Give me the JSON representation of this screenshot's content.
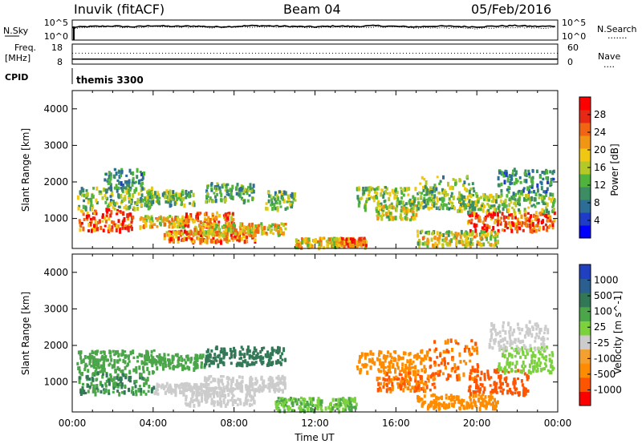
{
  "header": {
    "station": "Inuvik (fitACF)",
    "beam": "Beam 04",
    "date": "05/Feb/2016"
  },
  "panel_labels": {
    "nsky": "N.Sky",
    "nsearch": "N.Search",
    "freq_line1": "Freq.",
    "freq_line2": "[MHz]",
    "nave": "Nave",
    "cpid": "CPID",
    "cpid_value": "themis 3300"
  },
  "dotted_marker": ".......",
  "nave_marker": "....",
  "chart_data": [
    {
      "type": "line",
      "name": "noise-panel",
      "left_ticks": [
        "10^5",
        "10^0"
      ],
      "right_ticks": [
        "10^5",
        "10^0"
      ],
      "left_label": "N.Sky",
      "right_label": "N.Search",
      "x": [
        0,
        1,
        2,
        3,
        4,
        5,
        6,
        7,
        8,
        9,
        10,
        11,
        12,
        13,
        14,
        15,
        16,
        17,
        18,
        19,
        20,
        21,
        22,
        23,
        24
      ],
      "series": [
        {
          "name": "N.Sky",
          "values": [
            3.2,
            3.4,
            3.5,
            3.3,
            3.6,
            3.4,
            3.5,
            3.3,
            3.4,
            3.6,
            3.5,
            3.4,
            3.3,
            3.5,
            3.4,
            3.6,
            3.4,
            3.3,
            3.5,
            3.4,
            3.3,
            3.5,
            3.6,
            3.4,
            3.5
          ]
        },
        {
          "name": "N.Search",
          "values": [
            3.0,
            3.2,
            3.3,
            3.1,
            3.3,
            3.2,
            3.2,
            3.1,
            3.2,
            3.3,
            3.3,
            3.2,
            3.1,
            3.2,
            3.1,
            3.3,
            3.2,
            3.0,
            3.1,
            3.0,
            2.9,
            3.1,
            3.2,
            3.0,
            3.1
          ]
        }
      ],
      "ylim": [
        0,
        5
      ]
    },
    {
      "type": "line",
      "name": "freq-panel",
      "left_ticks": [
        "18",
        "8"
      ],
      "right_ticks": [
        "60",
        "0"
      ],
      "x": [
        0,
        24
      ],
      "series": [
        {
          "name": "Freq.",
          "values": [
            10.5,
            10.5
          ]
        },
        {
          "name": "Nave",
          "values": [
            35,
            35
          ]
        }
      ],
      "ylim_left": [
        8,
        18
      ],
      "ylim_right": [
        0,
        60
      ]
    },
    {
      "type": "heatmap",
      "name": "power",
      "ylabel": "Slant Range [km]",
      "xlim": [
        0,
        24
      ],
      "ylim": [
        180,
        4500
      ],
      "yticks": [
        "1000",
        "2000",
        "3000",
        "4000"
      ],
      "colorbar_label": "Power [dB]",
      "colorbar_ticks": [
        "28",
        "24",
        "20",
        "16",
        "12",
        "8",
        "4"
      ],
      "colorbar_colors": [
        "#0000ff",
        "#1e3cc8",
        "#2d6e96",
        "#3c8c64",
        "#50b43c",
        "#b4c828",
        "#f0c814",
        "#f09614",
        "#f06414",
        "#e62814",
        "#ff0000"
      ],
      "blobs": [
        {
          "t0": 0.3,
          "t1": 3.0,
          "r0": 700,
          "r1": 1300,
          "value": 27
        },
        {
          "t0": 0.2,
          "t1": 4.0,
          "r0": 1300,
          "r1": 1900,
          "value": 14
        },
        {
          "t0": 1.5,
          "t1": 3.5,
          "r0": 1800,
          "r1": 2400,
          "value": 10
        },
        {
          "t0": 3.5,
          "t1": 6.0,
          "r0": 1400,
          "r1": 1800,
          "value": 14
        },
        {
          "t0": 3.3,
          "t1": 5.5,
          "r0": 800,
          "r1": 1100,
          "value": 18
        },
        {
          "t0": 5.5,
          "t1": 8.0,
          "r0": 800,
          "r1": 1200,
          "value": 25
        },
        {
          "t0": 4.5,
          "t1": 9.0,
          "r0": 400,
          "r1": 700,
          "value": 24
        },
        {
          "t0": 6.0,
          "t1": 10.5,
          "r0": 600,
          "r1": 900,
          "value": 20
        },
        {
          "t0": 6.5,
          "t1": 9.0,
          "r0": 1500,
          "r1": 2000,
          "value": 12
        },
        {
          "t0": 9.5,
          "t1": 11.0,
          "r0": 1300,
          "r1": 1800,
          "value": 14
        },
        {
          "t0": 11.0,
          "t1": 14.5,
          "r0": 250,
          "r1": 500,
          "value": 20
        },
        {
          "t0": 13.0,
          "t1": 14.5,
          "r0": 300,
          "r1": 500,
          "value": 26
        },
        {
          "t0": 14.0,
          "t1": 18.0,
          "r0": 1300,
          "r1": 1900,
          "value": 15
        },
        {
          "t0": 15.0,
          "t1": 17.0,
          "r0": 1000,
          "r1": 1400,
          "value": 18
        },
        {
          "t0": 17.0,
          "t1": 20.0,
          "r0": 1300,
          "r1": 2200,
          "value": 14
        },
        {
          "t0": 19.5,
          "t1": 23.8,
          "r0": 700,
          "r1": 1200,
          "value": 27
        },
        {
          "t0": 19.0,
          "t1": 23.8,
          "r0": 1200,
          "r1": 1700,
          "value": 15
        },
        {
          "t0": 17.0,
          "t1": 21.0,
          "r0": 300,
          "r1": 700,
          "value": 18
        },
        {
          "t0": 21.0,
          "t1": 23.8,
          "r0": 1700,
          "r1": 2400,
          "value": 10
        }
      ]
    },
    {
      "type": "heatmap",
      "name": "velocity",
      "ylabel": "Slant Range [km]",
      "xlabel": "Time UT",
      "xlim": [
        0,
        24
      ],
      "ylim": [
        180,
        4500
      ],
      "xticks": [
        "00:00",
        "04:00",
        "08:00",
        "12:00",
        "16:00",
        "20:00",
        "00:00"
      ],
      "yticks": [
        "1000",
        "2000",
        "3000",
        "4000"
      ],
      "colorbar_label": "Velocity [m s^-1]",
      "colorbar_ticks": [
        "1000",
        "500",
        "100",
        "25",
        "-25",
        "-100",
        "-500",
        "-1000"
      ],
      "colorbar_colors": [
        "#ff0000",
        "#ff5500",
        "#ff8c00",
        "#f4a030",
        "#cccccc",
        "#7bd23c",
        "#4aa648",
        "#327856",
        "#2a5f8f",
        "#2040c0"
      ],
      "blobs": [
        {
          "t0": 0.3,
          "t1": 4.0,
          "r0": 700,
          "r1": 1300,
          "value": 300
        },
        {
          "t0": 0.2,
          "t1": 4.0,
          "r0": 1300,
          "r1": 1900,
          "value": 150
        },
        {
          "t0": 3.5,
          "t1": 6.5,
          "r0": 1400,
          "r1": 1800,
          "value": 120
        },
        {
          "t0": 4.0,
          "t1": 7.0,
          "r0": 700,
          "r1": 1000,
          "value": 0
        },
        {
          "t0": 5.5,
          "t1": 9.0,
          "r0": 400,
          "r1": 900,
          "value": 5
        },
        {
          "t0": 6.5,
          "t1": 10.5,
          "r0": 800,
          "r1": 1200,
          "value": -5
        },
        {
          "t0": 6.5,
          "t1": 10.5,
          "r0": 1500,
          "r1": 2000,
          "value": 400
        },
        {
          "t0": 10.0,
          "t1": 14.0,
          "r0": 250,
          "r1": 600,
          "value": 60
        },
        {
          "t0": 14.0,
          "t1": 17.5,
          "r0": 1300,
          "r1": 1900,
          "value": -200
        },
        {
          "t0": 15.0,
          "t1": 18.0,
          "r0": 800,
          "r1": 1300,
          "value": -300
        },
        {
          "t0": 17.5,
          "t1": 20.0,
          "r0": 1100,
          "r1": 2200,
          "value": -300
        },
        {
          "t0": 19.5,
          "t1": 22.5,
          "r0": 700,
          "r1": 1400,
          "value": -400
        },
        {
          "t0": 21.0,
          "t1": 23.8,
          "r0": 1300,
          "r1": 2000,
          "value": 40
        },
        {
          "t0": 20.5,
          "t1": 23.5,
          "r0": 1900,
          "r1": 2700,
          "value": 0
        },
        {
          "t0": 17.0,
          "t1": 21.0,
          "r0": 300,
          "r1": 700,
          "value": -150
        }
      ]
    }
  ]
}
